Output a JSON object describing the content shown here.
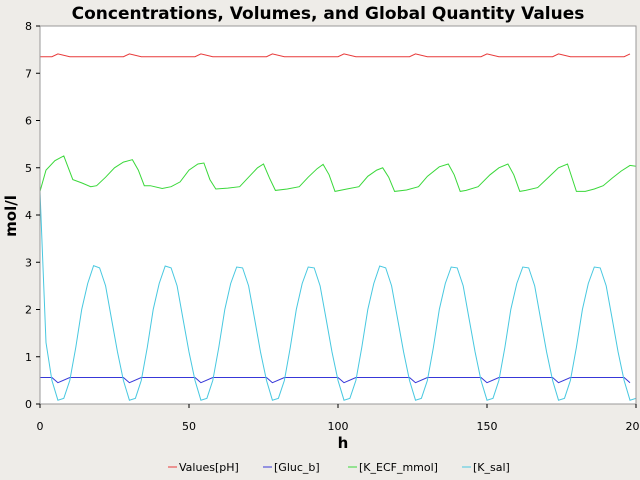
{
  "chart_data": {
    "type": "line",
    "title": "Concentrations, Volumes, and Global Quantity Values",
    "xlabel": "h",
    "ylabel": "mol/l",
    "xlim": [
      0,
      200
    ],
    "ylim": [
      0,
      8
    ],
    "xticks": [
      0,
      50,
      100,
      150,
      200
    ],
    "yticks": [
      0,
      1,
      2,
      3,
      4,
      5,
      6,
      7,
      8
    ],
    "grid": false,
    "legend_position": "bottom",
    "period": 24,
    "series": [
      {
        "name": "Values[pH]",
        "color": "#e83a3a",
        "x": [
          0,
          4,
          6,
          10,
          24,
          28,
          30,
          34,
          48
        ],
        "values": [
          7.35,
          7.35,
          7.41,
          7.35,
          7.35,
          7.35,
          7.41,
          7.35,
          7.35
        ]
      },
      {
        "name": "[Gluc_b]",
        "color": "#3838d8",
        "x": [
          0,
          4,
          6,
          10,
          24,
          28,
          30,
          34,
          48
        ],
        "values": [
          0.56,
          0.56,
          0.45,
          0.56,
          0.56,
          0.56,
          0.45,
          0.56,
          0.56
        ]
      },
      {
        "name": "[K_ECF_mmol]",
        "color": "#3ad83a",
        "x": [
          0,
          2,
          5,
          7,
          8,
          11,
          14,
          17,
          19,
          22,
          25,
          28,
          31,
          33,
          35,
          37,
          41,
          44,
          47,
          50,
          53,
          55,
          57,
          59,
          63,
          67,
          70,
          73,
          75,
          77,
          79,
          83,
          87,
          90,
          93,
          95,
          97,
          99,
          103,
          107,
          110,
          113,
          115,
          117,
          119,
          123,
          127,
          130,
          134,
          137,
          139,
          141,
          143,
          147,
          151,
          154,
          157,
          159,
          161,
          163,
          167,
          171,
          174,
          177,
          180,
          183,
          186,
          189,
          192,
          195,
          198,
          200
        ],
        "values": [
          4.5,
          4.95,
          5.15,
          5.22,
          5.25,
          4.75,
          4.68,
          4.6,
          4.62,
          4.8,
          5.0,
          5.12,
          5.17,
          4.95,
          4.62,
          4.62,
          4.56,
          4.6,
          4.7,
          4.95,
          5.08,
          5.1,
          4.75,
          4.55,
          4.57,
          4.6,
          4.8,
          5.0,
          5.08,
          4.78,
          4.52,
          4.55,
          4.6,
          4.8,
          4.98,
          5.07,
          4.85,
          4.5,
          4.55,
          4.6,
          4.82,
          4.95,
          5.0,
          4.8,
          4.5,
          4.53,
          4.6,
          4.82,
          5.02,
          5.08,
          4.85,
          4.5,
          4.52,
          4.6,
          4.85,
          5.0,
          5.08,
          4.85,
          4.5,
          4.52,
          4.58,
          4.82,
          5.0,
          5.08,
          4.5,
          4.5,
          4.55,
          4.62,
          4.78,
          4.93,
          5.05,
          5.03
        ]
      },
      {
        "name": "[K_sal]",
        "color": "#48c8e0",
        "x": [
          0,
          2,
          4,
          6,
          8,
          10,
          12,
          14,
          16,
          18,
          20,
          22,
          24,
          26,
          28,
          30,
          32,
          34,
          36,
          38,
          40,
          42,
          44,
          46,
          48,
          50,
          52,
          54,
          56,
          58,
          60,
          62,
          64,
          66,
          68,
          70,
          72,
          74,
          76,
          78,
          80,
          82,
          84,
          86,
          88,
          90,
          92,
          94,
          96,
          98,
          100,
          102,
          104,
          106,
          108,
          110,
          112,
          114,
          116,
          118,
          120,
          122,
          124,
          126,
          128,
          130,
          132,
          134,
          136,
          138,
          140,
          142,
          144,
          146,
          148,
          150,
          152,
          154,
          156,
          158,
          160,
          162,
          164,
          166,
          168,
          170,
          172,
          174,
          176,
          178,
          180,
          182,
          184,
          186,
          188,
          190,
          192,
          194,
          196,
          198,
          200
        ],
        "values": [
          4.5,
          1.3,
          0.5,
          0.08,
          0.12,
          0.5,
          1.2,
          2.0,
          2.55,
          2.93,
          2.88,
          2.5,
          1.8,
          1.1,
          0.5,
          0.08,
          0.12,
          0.5,
          1.2,
          2.0,
          2.55,
          2.92,
          2.88,
          2.5,
          1.8,
          1.1,
          0.5,
          0.08,
          0.12,
          0.5,
          1.2,
          2.0,
          2.55,
          2.9,
          2.88,
          2.5,
          1.8,
          1.1,
          0.5,
          0.08,
          0.12,
          0.5,
          1.2,
          2.0,
          2.55,
          2.9,
          2.88,
          2.5,
          1.8,
          1.1,
          0.5,
          0.08,
          0.12,
          0.5,
          1.2,
          2.0,
          2.55,
          2.92,
          2.88,
          2.5,
          1.8,
          1.1,
          0.5,
          0.08,
          0.12,
          0.5,
          1.2,
          2.0,
          2.55,
          2.9,
          2.88,
          2.5,
          1.8,
          1.1,
          0.5,
          0.08,
          0.12,
          0.5,
          1.2,
          2.0,
          2.55,
          2.9,
          2.88,
          2.5,
          1.8,
          1.1,
          0.5,
          0.08,
          0.12,
          0.5,
          1.2,
          2.0,
          2.55,
          2.9,
          2.88,
          2.5,
          1.8,
          1.1,
          0.5,
          0.08,
          0.12
        ]
      }
    ]
  }
}
